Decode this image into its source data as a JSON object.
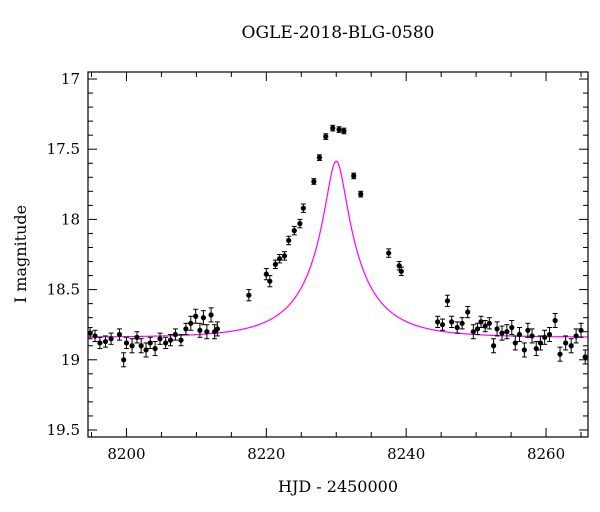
{
  "chart_data": {
    "type": "scatter",
    "title": "OGLE-2018-BLG-0580",
    "xlabel": "HJD - 2450000",
    "ylabel": "I magnitude",
    "xlim": [
      8194.5,
      8266
    ],
    "ylim": [
      19.55,
      16.95
    ],
    "y_inverted": true,
    "grid": false,
    "legend": "none",
    "x_major_ticks": [
      8200,
      8220,
      8240,
      8260
    ],
    "x_tick_labels": [
      "8200",
      "8220",
      "8240",
      "8260"
    ],
    "y_major_ticks": [
      17,
      17.5,
      18,
      18.5,
      19,
      19.5
    ],
    "y_tick_labels": [
      "17",
      "17.5",
      "18",
      "18.5",
      "19",
      "19.5"
    ],
    "colors": {
      "data": "#000000",
      "model": "#ff00ff"
    },
    "model": {
      "type": "paczynski",
      "t0": 8230.0,
      "tE": 9.0,
      "u0": 0.16,
      "baseline_mag": 18.84,
      "blend_fraction": 0.41
    },
    "series": [
      {
        "marker": "circle",
        "x": [
          8194.8,
          8195.5,
          8196.2,
          8197.0,
          8197.8,
          8199.0,
          8199.6,
          8200.0,
          8200.8,
          8201.5,
          8202.1,
          8202.8,
          8203.4,
          8204.1,
          8204.8,
          8205.6,
          8206.3,
          8207.0,
          8207.8,
          8208.5,
          8209.2,
          8209.9,
          8210.5,
          8211.0,
          8211.5,
          8212.1,
          8212.6,
          8213.0,
          8217.5,
          8220.0,
          8220.5,
          8221.3,
          8221.9,
          8222.6,
          8223.2,
          8224.0,
          8224.8,
          8225.3,
          8226.8,
          8227.6,
          8228.5,
          8229.5,
          8230.4,
          8231.1,
          8232.5,
          8233.5,
          8237.5,
          8239.0,
          8239.3,
          8244.5,
          8245.2,
          8245.9,
          8246.5,
          8247.3,
          8248.0,
          8248.8,
          8249.6,
          8250.2,
          8250.7,
          8251.3,
          8251.9,
          8252.5,
          8253.0,
          8253.7,
          8254.4,
          8255.1,
          8255.6,
          8256.2,
          8256.9,
          8257.4,
          8258.0,
          8258.6,
          8259.2,
          8259.8,
          8260.5,
          8261.3,
          8262.0,
          8262.8,
          8263.6,
          8264.3,
          8265.0,
          8265.6
        ],
        "y": [
          18.81,
          18.83,
          18.88,
          18.87,
          18.85,
          18.82,
          19.0,
          18.88,
          18.9,
          18.84,
          18.9,
          18.93,
          18.88,
          18.92,
          18.85,
          18.88,
          18.86,
          18.82,
          18.86,
          18.78,
          18.74,
          18.69,
          18.79,
          18.7,
          18.8,
          18.68,
          18.8,
          18.78,
          18.54,
          18.39,
          18.44,
          18.32,
          18.28,
          18.26,
          18.15,
          18.08,
          18.03,
          17.92,
          17.73,
          17.56,
          17.41,
          17.35,
          17.36,
          17.37,
          17.69,
          17.82,
          18.24,
          18.33,
          18.37,
          18.73,
          18.75,
          18.58,
          18.73,
          18.77,
          18.74,
          18.66,
          18.8,
          18.78,
          18.73,
          18.76,
          18.74,
          18.9,
          18.78,
          18.81,
          18.8,
          18.77,
          18.88,
          18.82,
          18.93,
          18.79,
          18.83,
          18.92,
          18.88,
          18.84,
          18.82,
          18.72,
          18.96,
          18.88,
          18.9,
          18.83,
          18.79,
          18.98
        ],
        "err": [
          0.04,
          0.04,
          0.04,
          0.04,
          0.04,
          0.04,
          0.05,
          0.04,
          0.05,
          0.04,
          0.05,
          0.05,
          0.04,
          0.05,
          0.04,
          0.04,
          0.04,
          0.04,
          0.04,
          0.04,
          0.05,
          0.05,
          0.05,
          0.05,
          0.05,
          0.05,
          0.05,
          0.05,
          0.04,
          0.04,
          0.04,
          0.03,
          0.03,
          0.03,
          0.03,
          0.03,
          0.03,
          0.03,
          0.02,
          0.02,
          0.02,
          0.02,
          0.02,
          0.02,
          0.02,
          0.02,
          0.03,
          0.03,
          0.03,
          0.04,
          0.04,
          0.04,
          0.04,
          0.04,
          0.04,
          0.04,
          0.05,
          0.04,
          0.04,
          0.04,
          0.04,
          0.05,
          0.05,
          0.05,
          0.05,
          0.05,
          0.05,
          0.05,
          0.05,
          0.05,
          0.05,
          0.05,
          0.05,
          0.05,
          0.05,
          0.05,
          0.05,
          0.05,
          0.05,
          0.05,
          0.05,
          0.05
        ]
      }
    ]
  }
}
